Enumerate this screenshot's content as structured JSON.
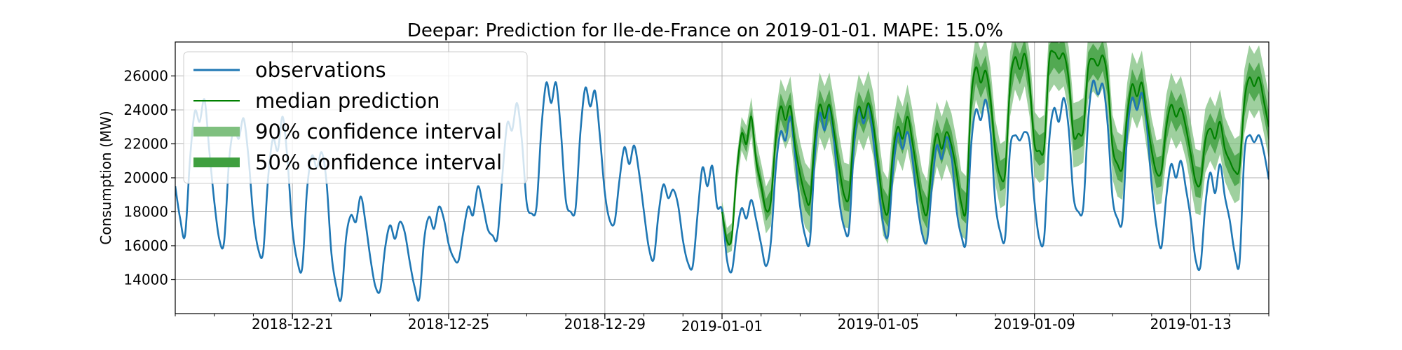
{
  "chart_data": {
    "type": "line",
    "title": "Deepar: Prediction for Ile-de-France on 2019-01-01. MAPE: 15.0%",
    "xlabel": "",
    "ylabel": "Consumption (MW)",
    "x_start": "2018-12-18",
    "x_end": "2019-01-15",
    "forecast_start": "2019-01-01",
    "ylim": [
      12000,
      28000
    ],
    "yticks": [
      14000,
      16000,
      18000,
      20000,
      22000,
      24000,
      26000
    ],
    "xticks": [
      "2018-12-21",
      "2018-12-25",
      "2018-12-29",
      "2019-01-01",
      "2019-01-05",
      "2019-01-09",
      "2019-01-13"
    ],
    "grid": true,
    "legend_position": "upper left",
    "legend": [
      {
        "label": "observations",
        "kind": "line",
        "color": "#1f77b4"
      },
      {
        "label": "median prediction",
        "kind": "line",
        "color": "#008000"
      },
      {
        "label": "90% confidence interval",
        "kind": "band",
        "color": "#7fc07f"
      },
      {
        "label": "50% confidence interval",
        "kind": "band",
        "color": "#3f9f3f"
      }
    ],
    "series": [
      {
        "name": "observations",
        "color": "#1f77b4",
        "daily_points": [
          "00:00",
          "03:00",
          "06:00",
          "09:00",
          "12:00",
          "15:00",
          "18:00",
          "21:00"
        ],
        "days": [
          {
            "date": "2018-12-18",
            "values": [
              19500,
              17600,
              16600,
              21000,
              23900,
              23300,
              24600,
              21500
            ]
          },
          {
            "date": "2018-12-19",
            "values": [
              18600,
              16400,
              16200,
              20900,
              22900,
              22300,
              23500,
              21200
            ]
          },
          {
            "date": "2018-12-20",
            "values": [
              17700,
              15800,
              15600,
              19900,
              22300,
              21600,
              23600,
              21000
            ]
          },
          {
            "date": "2018-12-21",
            "values": [
              17000,
              15100,
              14700,
              19300,
              21300,
              20600,
              21500,
              19700
            ]
          },
          {
            "date": "2018-12-22",
            "values": [
              15500,
              13600,
              12900,
              16500,
              17800,
              17400,
              18900,
              17300
            ]
          },
          {
            "date": "2018-12-23",
            "values": [
              15200,
              13600,
              13400,
              15900,
              17200,
              16400,
              17400,
              16800
            ]
          },
          {
            "date": "2018-12-24",
            "values": [
              15100,
              13600,
              12900,
              16400,
              17700,
              17000,
              18300,
              17600
            ]
          },
          {
            "date": "2018-12-25",
            "values": [
              16100,
              15300,
              15100,
              16800,
              18300,
              17800,
              19500,
              18400
            ]
          },
          {
            "date": "2018-12-26",
            "values": [
              17000,
              16600,
              16500,
              20100,
              23200,
              22800,
              24400,
              22200
            ]
          },
          {
            "date": "2018-12-27",
            "values": [
              18500,
              17900,
              18300,
              22900,
              25600,
              24400,
              25600,
              22700
            ]
          },
          {
            "date": "2018-12-28",
            "values": [
              18700,
              18000,
              18200,
              22700,
              25300,
              24200,
              25100,
              22400
            ]
          },
          {
            "date": "2018-12-29",
            "values": [
              19100,
              17500,
              17400,
              19900,
              21800,
              20800,
              21900,
              20300
            ]
          },
          {
            "date": "2018-12-30",
            "values": [
              18000,
              15900,
              15200,
              17900,
              19600,
              18800,
              19300,
              18400
            ]
          },
          {
            "date": "2018-12-31",
            "values": [
              16300,
              15000,
              14800,
              17900,
              20600,
              19500,
              20700,
              18300
            ]
          },
          {
            "date": "2019-01-01",
            "values": [
              18100,
              15200,
              14500,
              16700,
              18200,
              17600,
              18700,
              17500
            ]
          },
          {
            "date": "2019-01-02",
            "values": [
              16100,
              14800,
              16200,
              20500,
              22700,
              22200,
              23600,
              21200
            ]
          },
          {
            "date": "2019-01-03",
            "values": [
              18300,
              16600,
              16300,
              21200,
              23800,
              22800,
              24200,
              22000
            ]
          },
          {
            "date": "2019-01-04",
            "values": [
              18700,
              17100,
              16900,
              21700,
              24100,
              23200,
              24300,
              22200
            ]
          },
          {
            "date": "2019-01-05",
            "values": [
              19600,
              17300,
              16600,
              20300,
              22600,
              21700,
              22700,
              21100
            ]
          },
          {
            "date": "2019-01-06",
            "values": [
              18500,
              16700,
              16300,
              19500,
              21900,
              21100,
              22400,
              21300
            ]
          },
          {
            "date": "2019-01-07",
            "values": [
              18200,
              16600,
              16300,
              21800,
              24000,
              23400,
              24600,
              22700
            ]
          },
          {
            "date": "2019-01-08",
            "values": [
              18500,
              16800,
              16500,
              21700,
              22500,
              22200,
              22700,
              22100
            ]
          },
          {
            "date": "2019-01-09",
            "values": [
              18600,
              16400,
              16500,
              22100,
              24100,
              23300,
              24700,
              22900
            ]
          },
          {
            "date": "2019-01-10",
            "values": [
              18900,
              18000,
              18300,
              23400,
              25700,
              24900,
              25500,
              23100
            ]
          },
          {
            "date": "2019-01-11",
            "values": [
              18800,
              17600,
              17500,
              22600,
              24700,
              24000,
              25000,
              23100
            ]
          },
          {
            "date": "2019-01-12",
            "values": [
              19600,
              17100,
              15900,
              18900,
              20800,
              20000,
              21000,
              19400
            ]
          },
          {
            "date": "2019-01-13",
            "values": [
              17600,
              15200,
              14800,
              18400,
              20300,
              19100,
              20800,
              18900
            ]
          },
          {
            "date": "2019-01-14",
            "values": [
              17500,
              15600,
              15000,
              21400,
              22500,
              22100,
              22500,
              21500
            ]
          },
          {
            "date": "2019-01-15",
            "values": [
              19900
            ]
          }
        ]
      },
      {
        "name": "median prediction",
        "color": "#008000",
        "daily_points": [
          "00:00",
          "03:00",
          "06:00",
          "09:00",
          "12:00",
          "15:00",
          "18:00",
          "21:00"
        ],
        "days": [
          {
            "date": "2019-01-01",
            "values": [
              18000,
              16300,
              16500,
              20300,
              22600,
              22000,
              23600,
              21000
            ]
          },
          {
            "date": "2019-01-02",
            "values": [
              19600,
              18100,
              18600,
              22300,
              24200,
              23400,
              24200,
              21800
            ]
          },
          {
            "date": "2019-01-03",
            "values": [
              20200,
              19000,
              18600,
              22200,
              24300,
              23500,
              24300,
              22600
            ]
          },
          {
            "date": "2019-01-04",
            "values": [
              20600,
              19000,
              18900,
              22600,
              24200,
              23500,
              24400,
              23100
            ]
          },
          {
            "date": "2019-01-05",
            "values": [
              20700,
              18500,
              18000,
              21400,
              23000,
              22300,
              23600,
              22100
            ]
          },
          {
            "date": "2019-01-06",
            "values": [
              20200,
              18500,
              17900,
              20900,
              22600,
              21700,
              22700,
              21900
            ]
          },
          {
            "date": "2019-01-07",
            "values": [
              20400,
              18500,
              18200,
              24500,
              26500,
              25600,
              26300,
              24600
            ]
          },
          {
            "date": "2019-01-08",
            "values": [
              21500,
              20100,
              20300,
              25500,
              27100,
              26400,
              27300,
              25500
            ]
          },
          {
            "date": "2019-01-09",
            "values": [
              22000,
              21600,
              21800,
              26900,
              27400,
              27000,
              27300,
              25800
            ]
          },
          {
            "date": "2019-01-10",
            "values": [
              22500,
              22600,
              22800,
              26500,
              27000,
              26600,
              27200,
              25700
            ]
          },
          {
            "date": "2019-01-11",
            "values": [
              21800,
              20800,
              20600,
              23700,
              25500,
              24800,
              25600,
              23600
            ]
          },
          {
            "date": "2019-01-12",
            "values": [
              21600,
              20300,
              20400,
              23000,
              24300,
              23600,
              24100,
              23000
            ]
          },
          {
            "date": "2019-01-13",
            "values": [
              21400,
              19800,
              19700,
              22200,
              22900,
              22300,
              23300,
              21700
            ]
          },
          {
            "date": "2019-01-14",
            "values": [
              21000,
              20400,
              20600,
              24500,
              25900,
              25400,
              25900,
              24500
            ]
          },
          {
            "date": "2019-01-15",
            "values": [
              23000
            ]
          }
        ],
        "band50_halfwidth": 900,
        "band90_halfwidth": 1900
      }
    ]
  }
}
